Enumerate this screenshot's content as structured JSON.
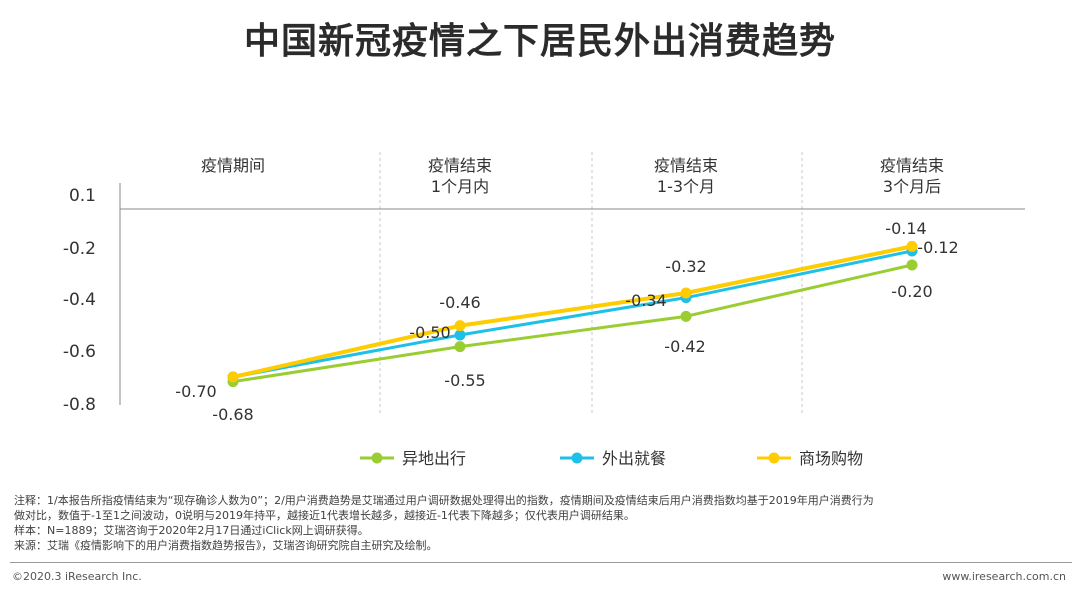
{
  "title": "中国新冠疫情之下居民外出消费趋势",
  "chart_data": {
    "type": "line",
    "categories": [
      "疫情期间",
      "疫情结束\n1个月内",
      "疫情结束\n1-3个月",
      "疫情结束\n3个月后"
    ],
    "series": [
      {
        "name": "异地出行",
        "color": "#9acd32",
        "values": [
          -0.7,
          -0.55,
          -0.42,
          -0.2
        ],
        "labels": [
          "-0.70",
          "-0.55",
          "-0.42",
          "-0.20"
        ]
      },
      {
        "name": "外出就餐",
        "color": "#1ec0e8",
        "values": [
          -0.68,
          -0.5,
          -0.34,
          -0.14
        ],
        "labels": [
          "-0.68",
          "-0.50",
          "-0.34",
          "-0.14"
        ]
      },
      {
        "name": "商场购物",
        "color": "#ffcc00",
        "values": [
          -0.68,
          -0.46,
          -0.32,
          -0.12
        ],
        "labels": [
          "-0.68",
          "-0.46",
          "-0.32",
          "-0.12"
        ]
      }
    ],
    "y_ticks": [
      "0.1",
      "-0.2",
      "-0.4",
      "-0.6",
      "-0.8"
    ],
    "ylim": [
      -0.8,
      0.1
    ],
    "legend_position": "bottom"
  },
  "notes": {
    "line1": "注释：1/本报告所指疫情结束为“现存确诊人数为0”；2/用户消费趋势是艾瑞通过用户调研数据处理得出的指数，疫情期间及疫情结束后用户消费指数均基于2019年用户消费行为",
    "line2": "做对比，数值于-1至1之间波动，0说明与2019年持平，越接近1代表增长越多，越接近-1代表下降越多；仅代表用户调研结果。",
    "line3": "样本：N=1889；艾瑞咨询于2020年2月17日通过iClick网上调研获得。",
    "line4": "来源：艾瑞《疫情影响下的用户消费指数趋势报告》，艾瑞咨询研究院自主研究及绘制。"
  },
  "footer": {
    "left": "©2020.3 iResearch Inc.",
    "right": "www.iresearch.com.cn"
  }
}
